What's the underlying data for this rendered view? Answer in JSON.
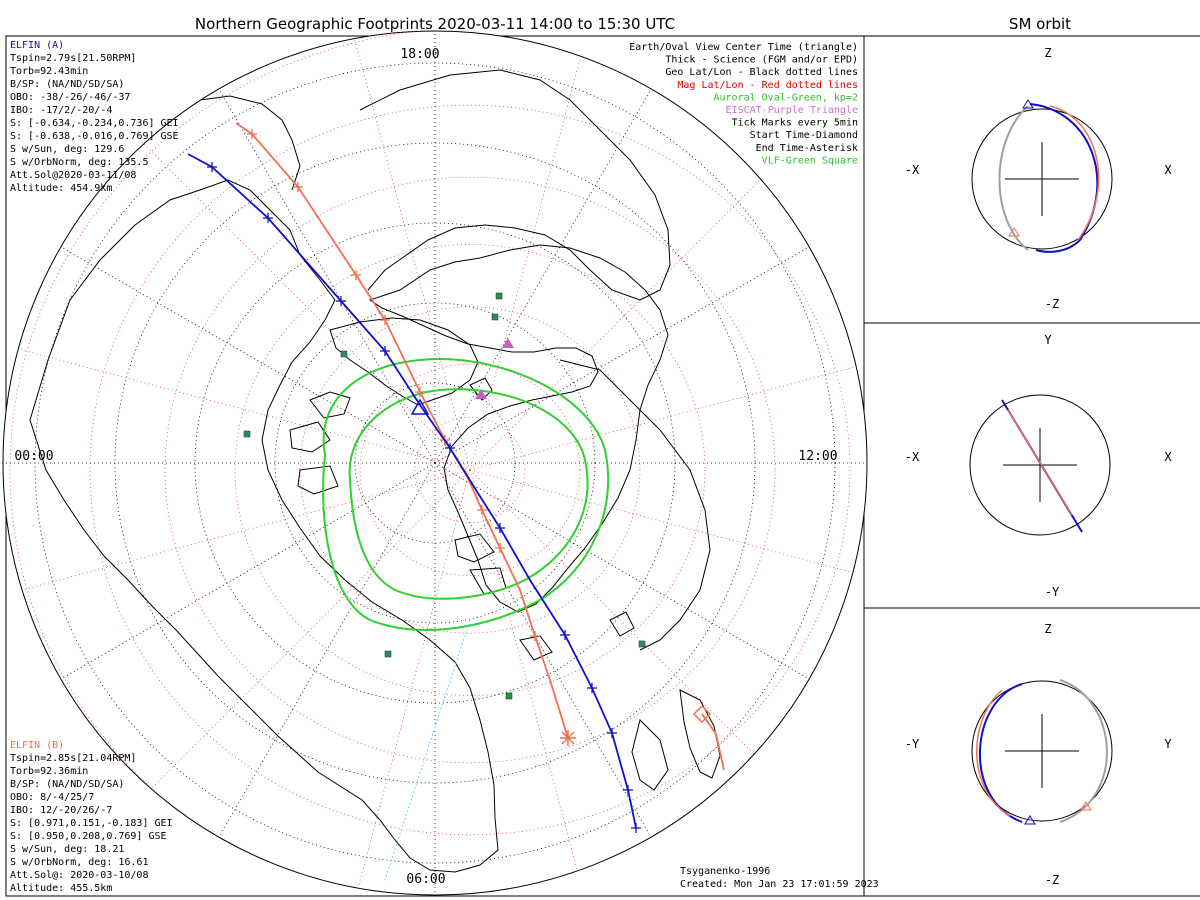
{
  "title": "Northern Geographic Footprints 2020-03-11 14:00 to 15:30 UTC",
  "sm_title": "SM orbit",
  "clock_labels": {
    "top": "18:00",
    "left": "00:00",
    "right": "12:00",
    "bottom": "06:00"
  },
  "elfin_a": {
    "name": "ELFIN (A)",
    "color": "#1010c8",
    "lines": [
      "Tspin=2.79s[21.50RPM]",
      "Torb=92.43min",
      "B/SP: (NA/ND/SD/SA)",
      "OBO: -38/-26/-46/-37",
      "IBO: -17/2/-20/-4",
      "S: [-0.634,-0.234,0.736] GEI",
      "S: [-0.638,-0.016,0.769] GSE",
      "S w/Sun, deg: 129.6",
      "S w/OrbNorm, deg: 135.5",
      "Att.Sol@2020-03-11/08",
      "Altitude: 454.9km"
    ]
  },
  "elfin_b": {
    "name": "ELFIN (B)",
    "color": "#f07050",
    "lines": [
      "Tspin=2.85s[21.04RPM]",
      "Torb=92.36min",
      "B/SP: (NA/ND/SD/SA)",
      "OBO: 8/-4/25/7",
      "IBO: 12/-20/26/-7",
      "S: [0.971,0.151,-0.183] GEI",
      "S: [0.950,0.208,0.769] GSE",
      "S w/Sun, deg: 18.21",
      "S w/OrbNorm, deg: 16.61",
      "Att.Sol@: 2020-03-10/08",
      "Altitude: 455.5km"
    ]
  },
  "legend": [
    {
      "text": "Earth/Oval View Center Time (triangle)",
      "color": "#000000"
    },
    {
      "text": "Thick - Science (FGM and/or EPD)",
      "color": "#000000"
    },
    {
      "text": "Geo Lat/Lon - Black dotted lines",
      "color": "#000000"
    },
    {
      "text": "Mag Lat/Lon - Red dotted lines",
      "color": "#e00000"
    },
    {
      "text": "Auroral Oval-Green, kp=2",
      "color": "#30c030"
    },
    {
      "text": "EISCAT-Purple Triangle",
      "color": "#d070d0"
    },
    {
      "text": "Tick Marks every 5min",
      "color": "#000000"
    },
    {
      "text": "Start Time-Diamond",
      "color": "#000000"
    },
    {
      "text": "End Time-Asterisk",
      "color": "#000000"
    },
    {
      "text": "VLF-Green Square",
      "color": "#30c030"
    }
  ],
  "credit": {
    "author": "Tsyganenko-1996",
    "created": "Created: Mon Jan 23 17:01:59 2023"
  },
  "panels": [
    {
      "top": "Z",
      "bottom": "-Z",
      "left": "-X",
      "right": "X"
    },
    {
      "top": "Y",
      "bottom": "-Y",
      "left": "-X",
      "right": "X"
    },
    {
      "top": "Z",
      "bottom": "-Z",
      "left": "-Y",
      "right": "Y"
    }
  ],
  "colors": {
    "elfin_a": "#1010c8",
    "elfin_b": "#f07050",
    "oval": "#30d030",
    "mag_grid": "#e04040",
    "vlf": "#2e8b57",
    "eiscat": "#c060c0",
    "orbit_gray": "#a0a0a0"
  }
}
